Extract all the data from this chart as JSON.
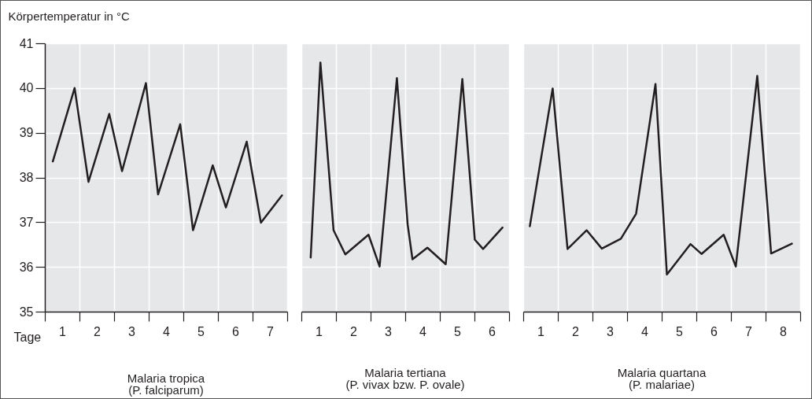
{
  "chart_data": [
    {
      "type": "line",
      "title": "Malaria tropica",
      "subtitle": "(P. falciparum)",
      "xlabel": "Tage",
      "ylabel": "Körpertemperatur in °C",
      "x": [
        0.23,
        0.86,
        1.26,
        1.86,
        2.23,
        2.92,
        3.27,
        3.91,
        4.28,
        4.85,
        5.23,
        5.83,
        6.24,
        6.85
      ],
      "series": [
        {
          "color": "#231f20",
          "values": [
            38.36,
            40.0,
            37.9,
            39.42,
            38.14,
            40.11,
            37.62,
            39.19,
            36.82,
            38.27,
            37.33,
            38.8,
            36.99,
            37.6
          ]
        }
      ],
      "xlim": [
        0,
        7
      ],
      "xticks": [
        {
          "value": 0,
          "label": null
        },
        {
          "value": 0.5,
          "label": "1"
        },
        {
          "value": 1,
          "label": null
        },
        {
          "value": 1.5,
          "label": "2"
        },
        {
          "value": 2,
          "label": null
        },
        {
          "value": 2.5,
          "label": "3"
        },
        {
          "value": 3,
          "label": null
        },
        {
          "value": 3.5,
          "label": "4"
        },
        {
          "value": 4,
          "label": null
        },
        {
          "value": 4.5,
          "label": "5"
        },
        {
          "value": 5,
          "label": null
        },
        {
          "value": 5.5,
          "label": "6"
        },
        {
          "value": 6,
          "label": null
        },
        {
          "value": 6.5,
          "label": "7"
        },
        {
          "value": 7,
          "label": null
        }
      ],
      "ylim": [
        35,
        41
      ],
      "yticks": [
        35,
        36,
        37,
        38,
        39,
        40,
        41
      ],
      "grid": true
    },
    {
      "type": "line",
      "title": "Malaria tertiana",
      "subtitle": "(P. vivax bzw. P. ovale)",
      "x": [
        0.27,
        0.55,
        0.93,
        1.27,
        1.94,
        2.26,
        2.76,
        3.07,
        3.21,
        3.64,
        4.17,
        4.65,
        5.01,
        5.25,
        5.81
      ],
      "series": [
        {
          "color": "#231f20",
          "values": [
            36.21,
            40.57,
            36.82,
            36.28,
            36.72,
            36.01,
            40.22,
            36.95,
            36.17,
            36.43,
            36.06,
            40.2,
            36.61,
            36.4,
            36.88
          ]
        }
      ],
      "xlim": [
        0,
        6
      ],
      "xticks": [
        {
          "value": 0,
          "label": null
        },
        {
          "value": 0.5,
          "label": "1"
        },
        {
          "value": 1,
          "label": null
        },
        {
          "value": 1.5,
          "label": "2"
        },
        {
          "value": 2,
          "label": null
        },
        {
          "value": 2.5,
          "label": "3"
        },
        {
          "value": 3,
          "label": null
        },
        {
          "value": 3.5,
          "label": "4"
        },
        {
          "value": 4,
          "label": null
        },
        {
          "value": 4.5,
          "label": "5"
        },
        {
          "value": 5,
          "label": null
        },
        {
          "value": 5.5,
          "label": "6"
        },
        {
          "value": 6,
          "label": null
        }
      ],
      "ylim": [
        35,
        41
      ],
      "yticks": [
        35,
        36,
        37,
        38,
        39,
        40,
        41
      ],
      "grid": true,
      "tick_labels": "x"
    },
    {
      "type": "line",
      "title": "Malaria quartana",
      "subtitle": "(P. malariae)",
      "x": [
        0.19,
        0.85,
        1.28,
        1.83,
        2.27,
        2.82,
        3.26,
        3.82,
        4.15,
        4.83,
        5.15,
        5.79,
        6.14,
        6.76,
        7.16,
        7.76
      ],
      "series": [
        {
          "color": "#231f20",
          "values": [
            36.91,
            39.99,
            36.4,
            36.82,
            36.41,
            36.63,
            37.19,
            40.09,
            35.83,
            36.51,
            36.29,
            36.72,
            36.01,
            40.27,
            36.3,
            36.52
          ]
        }
      ],
      "xlim": [
        0,
        8
      ],
      "xticks": [
        {
          "value": 0,
          "label": null
        },
        {
          "value": 0.5,
          "label": "1"
        },
        {
          "value": 1,
          "label": null
        },
        {
          "value": 1.5,
          "label": "2"
        },
        {
          "value": 2,
          "label": null
        },
        {
          "value": 2.5,
          "label": "3"
        },
        {
          "value": 3,
          "label": null
        },
        {
          "value": 3.5,
          "label": "4"
        },
        {
          "value": 4,
          "label": null
        },
        {
          "value": 4.5,
          "label": "5"
        },
        {
          "value": 5,
          "label": null
        },
        {
          "value": 5.5,
          "label": "6"
        },
        {
          "value": 6,
          "label": null
        },
        {
          "value": 6.5,
          "label": "7"
        },
        {
          "value": 7,
          "label": null
        },
        {
          "value": 7.5,
          "label": "8"
        },
        {
          "value": 8,
          "label": null
        }
      ],
      "ylim": [
        35,
        41
      ],
      "yticks": [
        35,
        36,
        37,
        38,
        39,
        40,
        41
      ],
      "grid": true,
      "tick_labels": "x"
    }
  ]
}
